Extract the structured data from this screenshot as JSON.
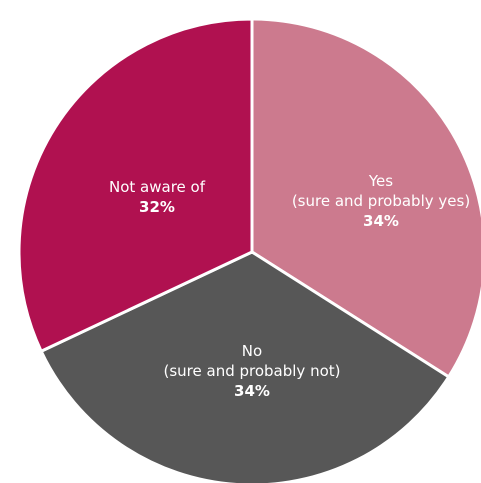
{
  "chart_data": {
    "type": "pie",
    "title": "",
    "start_angle_deg": 0,
    "direction": "clockwise",
    "slices": [
      {
        "label_lines": [
          "Yes",
          "(sure and probably yes)"
        ],
        "value": 34,
        "value_label": "34%",
        "color": "#CC7A8E"
      },
      {
        "label_lines": [
          "No",
          "(sure and probably not)"
        ],
        "value": 34,
        "value_label": "34%",
        "color": "#575757"
      },
      {
        "label_lines": [
          "Not aware of"
        ],
        "value": 32,
        "value_label": "32%",
        "color": "#B01150"
      }
    ]
  }
}
